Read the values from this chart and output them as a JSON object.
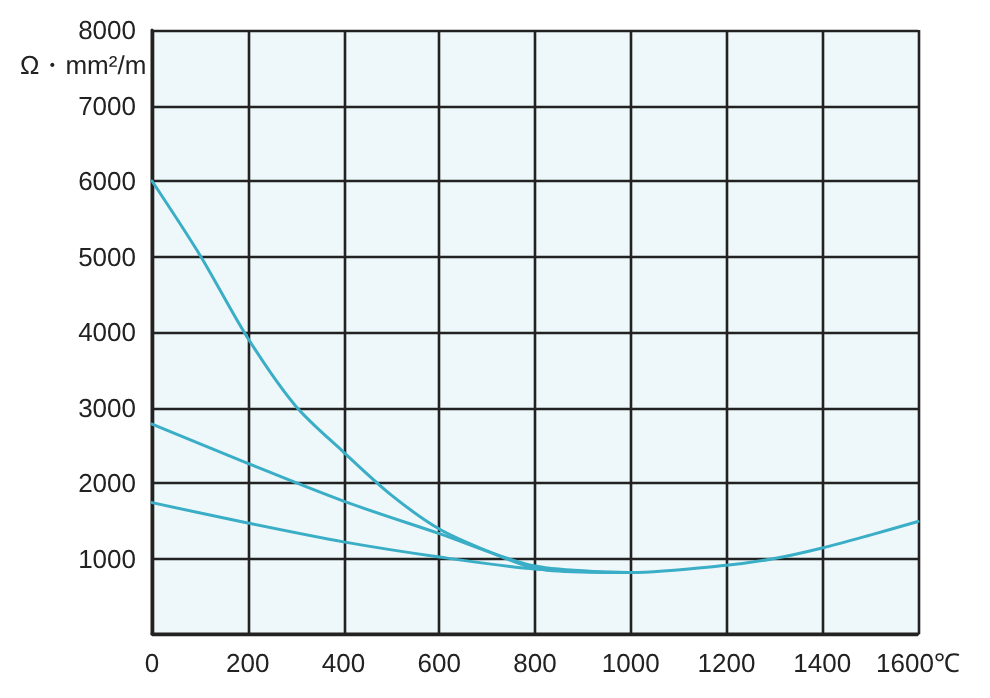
{
  "chart_data": {
    "type": "line",
    "ylabel": "Ω・mm²/m",
    "xlim": [
      0,
      1600
    ],
    "xticks": [
      0,
      200,
      400,
      600,
      800,
      1000,
      1200,
      1400,
      {
        "value": 1600,
        "label": "1600℃"
      }
    ],
    "ylim": [
      0,
      8000
    ],
    "yticks": [
      {
        "value": 0,
        "label": null
      },
      1000,
      2000,
      3000,
      4000,
      5000,
      6000,
      7000,
      8000
    ],
    "grid": true,
    "legend": false,
    "marker": "none",
    "line_style": "solid",
    "series": [
      {
        "color": "#3aaec6",
        "x": [
          0,
          100,
          200,
          300,
          400,
          500,
          600,
          700,
          800,
          900,
          1000
        ],
        "values": [
          6000,
          5020,
          3920,
          3020,
          2410,
          1840,
          1390,
          1100,
          870,
          820,
          815
        ]
      },
      {
        "color": "#3aaec6",
        "x": [
          0,
          200,
          400,
          600,
          800,
          1000
        ],
        "values": [
          2780,
          2260,
          1760,
          1330,
          900,
          815
        ]
      },
      {
        "color": "#3aaec6",
        "x": [
          0,
          200,
          400,
          600,
          800,
          1000,
          1200,
          1300,
          1400,
          1500,
          1600
        ],
        "values": [
          1740,
          1470,
          1220,
          1020,
          860,
          815,
          910,
          1000,
          1140,
          1310,
          1490
        ]
      }
    ]
  }
}
